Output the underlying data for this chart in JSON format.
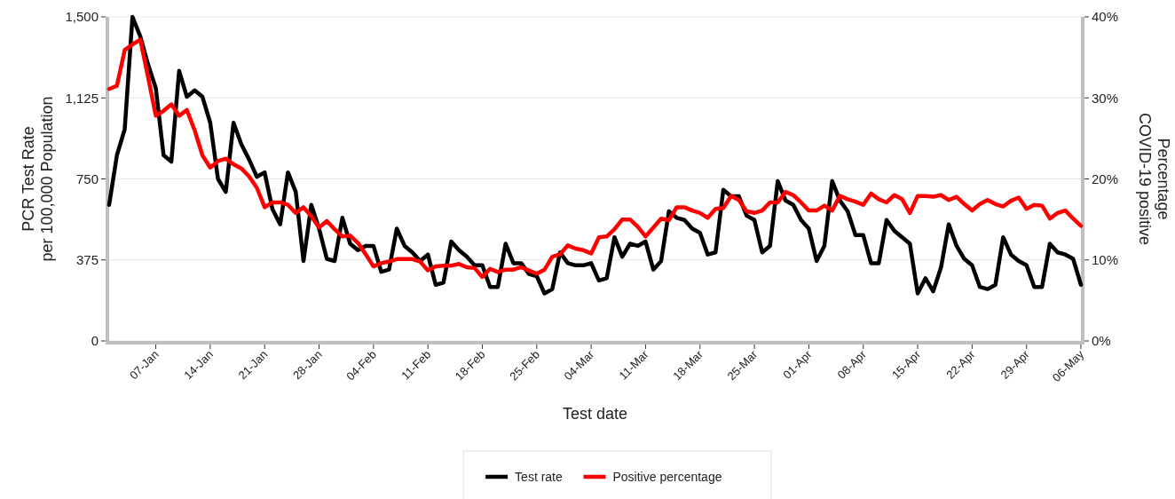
{
  "chart_data": {
    "type": "line",
    "xlabel": "Test date",
    "ylabel": "PCR Test Rate\nper 100,000 Population",
    "y2label": "Percentage\nCOVID-19 positive",
    "x": [
      "--01-01",
      "--01-02",
      "--01-03",
      "--01-04",
      "--01-05",
      "--01-06",
      "--01-07",
      "--01-08",
      "--01-09",
      "--01-10",
      "--01-11",
      "--01-12",
      "--01-13",
      "--01-14",
      "--01-15",
      "--01-16",
      "--01-17",
      "--01-18",
      "--01-19",
      "--01-20",
      "--01-21",
      "--01-22",
      "--01-23",
      "--01-24",
      "--01-25",
      "--01-26",
      "--01-27",
      "--01-28",
      "--01-29",
      "--01-30",
      "--01-31",
      "--02-01",
      "--02-02",
      "--02-03",
      "--02-04",
      "--02-05",
      "--02-06",
      "--02-07",
      "--02-08",
      "--02-09",
      "--02-10",
      "--02-11",
      "--02-12",
      "--02-13",
      "--02-14",
      "--02-15",
      "--02-16",
      "--02-17",
      "--02-18",
      "--02-19",
      "--02-20",
      "--02-21",
      "--02-22",
      "--02-23",
      "--02-24",
      "--02-25",
      "--02-26",
      "--02-27",
      "--02-28",
      "--03-01",
      "--03-02",
      "--03-03",
      "--03-04",
      "--03-05",
      "--03-06",
      "--03-07",
      "--03-08",
      "--03-09",
      "--03-10",
      "--03-11",
      "--03-12",
      "--03-13",
      "--03-14",
      "--03-15",
      "--03-16",
      "--03-17",
      "--03-18",
      "--03-19",
      "--03-20",
      "--03-21",
      "--03-22",
      "--03-23",
      "--03-24",
      "--03-25",
      "--03-26",
      "--03-27",
      "--03-28",
      "--03-29",
      "--03-30",
      "--03-31",
      "--04-01",
      "--04-02",
      "--04-03",
      "--04-04",
      "--04-05",
      "--04-06",
      "--04-07",
      "--04-08",
      "--04-09",
      "--04-10",
      "--04-11",
      "--04-12",
      "--04-13",
      "--04-14",
      "--04-15",
      "--04-16",
      "--04-17",
      "--04-18",
      "--04-19",
      "--04-20",
      "--04-21",
      "--04-22",
      "--04-23",
      "--04-24",
      "--04-25",
      "--04-26",
      "--04-27",
      "--04-28",
      "--04-29",
      "--04-30",
      "--05-01",
      "--05-02",
      "--05-03",
      "--05-04",
      "--05-05",
      "--05-06"
    ],
    "series": [
      {
        "name": "Test rate",
        "color": "#000000",
        "values": [
          630,
          860,
          980,
          1500,
          1410,
          1280,
          1170,
          860,
          830,
          1250,
          1130,
          1160,
          1130,
          1010,
          750,
          690,
          1010,
          910,
          840,
          760,
          780,
          610,
          540,
          780,
          690,
          370,
          630,
          520,
          380,
          370,
          570,
          450,
          420,
          440,
          440,
          320,
          330,
          520,
          440,
          410,
          370,
          400,
          260,
          270,
          460,
          420,
          390,
          350,
          350,
          250,
          250,
          450,
          360,
          360,
          310,
          300,
          220,
          240,
          410,
          360,
          350,
          350,
          360,
          280,
          290,
          480,
          390,
          450,
          440,
          460,
          330,
          370,
          600,
          570,
          560,
          520,
          500,
          400,
          410,
          700,
          670,
          670,
          580,
          560,
          410,
          440,
          740,
          650,
          630,
          560,
          520,
          370,
          440,
          740,
          650,
          600,
          490,
          490,
          360,
          360,
          560,
          510,
          480,
          450,
          220,
          290,
          230,
          340,
          540,
          440,
          380,
          350,
          250,
          240,
          260,
          480,
          400,
          370,
          350,
          250,
          250,
          450,
          410,
          400,
          380,
          260
        ]
      },
      {
        "name": "Positive percentage",
        "color": "#ff0000",
        "axis": "y2",
        "values": [
          31.1,
          31.5,
          35.9,
          36.6,
          37.2,
          32.6,
          27.8,
          28.4,
          29.2,
          27.8,
          28.5,
          26.0,
          22.9,
          21.4,
          22.2,
          22.5,
          21.8,
          21.3,
          20.3,
          18.9,
          16.5,
          17.1,
          17.1,
          16.8,
          15.8,
          16.5,
          15.4,
          14.0,
          14.8,
          13.8,
          12.9,
          13.0,
          12.1,
          10.7,
          9.2,
          9.6,
          9.8,
          10.1,
          10.1,
          10.1,
          9.8,
          8.7,
          9.2,
          9.3,
          9.3,
          9.5,
          9.1,
          9.0,
          7.9,
          8.9,
          8.5,
          8.8,
          8.8,
          9.1,
          8.7,
          8.3,
          8.8,
          10.4,
          10.7,
          11.8,
          11.4,
          11.2,
          10.8,
          12.8,
          12.9,
          13.8,
          15.0,
          15.0,
          14.1,
          12.9,
          14.0,
          15.1,
          14.9,
          16.5,
          16.5,
          16.1,
          15.8,
          15.2,
          16.3,
          16.4,
          17.9,
          17.4,
          16.0,
          15.8,
          16.1,
          17.1,
          17.1,
          18.4,
          18.0,
          17.1,
          16.1,
          16.1,
          16.7,
          16.1,
          17.9,
          17.5,
          17.2,
          16.8,
          18.2,
          17.5,
          17.1,
          18.0,
          17.5,
          15.8,
          17.9,
          17.9,
          17.8,
          18.0,
          17.4,
          17.8,
          16.9,
          16.1,
          16.9,
          17.4,
          16.9,
          16.6,
          17.3,
          17.7,
          16.3,
          16.8,
          16.7,
          15.1,
          15.8,
          16.1,
          15.1,
          14.2
        ]
      }
    ],
    "xlim": [
      "--01-01",
      "--05-06"
    ],
    "xticks": [
      {
        "value": "--01-07",
        "label": "07-Jan"
      },
      {
        "value": "--01-14",
        "label": "14-Jan"
      },
      {
        "value": "--01-21",
        "label": "21-Jan"
      },
      {
        "value": "--01-28",
        "label": "28-Jan"
      },
      {
        "value": "--02-04",
        "label": "04-Feb"
      },
      {
        "value": "--02-11",
        "label": "11-Feb"
      },
      {
        "value": "--02-18",
        "label": "18-Feb"
      },
      {
        "value": "--02-25",
        "label": "25-Feb"
      },
      {
        "value": "--03-04",
        "label": "04-Mar"
      },
      {
        "value": "--03-11",
        "label": "11-Mar"
      },
      {
        "value": "--03-18",
        "label": "18-Mar"
      },
      {
        "value": "--03-25",
        "label": "25-Mar"
      },
      {
        "value": "--04-01",
        "label": "01-Apr"
      },
      {
        "value": "--04-08",
        "label": "08-Apr"
      },
      {
        "value": "--04-15",
        "label": "15-Apr"
      },
      {
        "value": "--04-22",
        "label": "22-Apr"
      },
      {
        "value": "--04-29",
        "label": "29-Apr"
      },
      {
        "value": "--05-06",
        "label": "06-May"
      }
    ],
    "ylim": [
      0,
      1500
    ],
    "yticks": [
      0,
      375,
      750,
      {
        "value": 1125,
        "label": "1,125"
      },
      {
        "value": 1500,
        "label": "1,500"
      }
    ],
    "y2lim": [
      0,
      40
    ],
    "y2ticks": [
      {
        "value": 0,
        "label": "0%"
      },
      {
        "value": 10,
        "label": "10%"
      },
      {
        "value": 20,
        "label": "20%"
      },
      {
        "value": 30,
        "label": "30%"
      },
      {
        "value": 40,
        "label": "40%"
      }
    ],
    "grid": "y",
    "legend": "bottom",
    "marker": "none",
    "line_style": "solid"
  }
}
